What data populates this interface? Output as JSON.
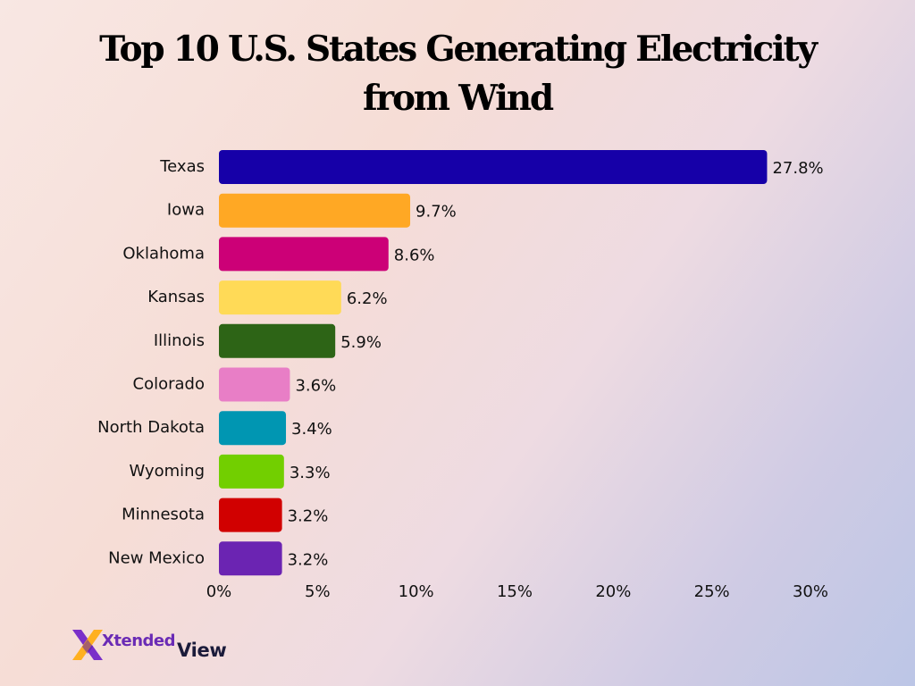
{
  "chart_data": {
    "type": "bar",
    "orientation": "horizontal",
    "title": "Top 10 U.S. States Generating Electricity from Wind",
    "xlabel": "",
    "ylabel": "",
    "xlim": [
      0,
      30
    ],
    "x_ticks": [
      "0%",
      "5%",
      "10%",
      "15%",
      "20%",
      "25%",
      "30%"
    ],
    "categories": [
      "Texas",
      "Iowa",
      "Oklahoma",
      "Kansas",
      "Illinois",
      "Colorado",
      "North Dakota",
      "Wyoming",
      "Minnesota",
      "New Mexico"
    ],
    "values": [
      27.8,
      9.7,
      8.6,
      6.2,
      5.9,
      3.6,
      3.4,
      3.3,
      3.2,
      3.2
    ],
    "value_labels": [
      "27.8%",
      "9.7%",
      "8.6%",
      "6.2%",
      "5.9%",
      "3.6%",
      "3.4%",
      "3.3%",
      "3.2%",
      "3.2%"
    ],
    "colors": [
      "#1600a8",
      "#ffa824",
      "#cc0077",
      "#ffda57",
      "#2d6416",
      "#e87ec6",
      "#0096b2",
      "#72cf00",
      "#d10000",
      "#6b24b2"
    ],
    "grid": false,
    "legend": "none"
  },
  "logo": {
    "part1": "Xtended",
    "part2": "View"
  }
}
